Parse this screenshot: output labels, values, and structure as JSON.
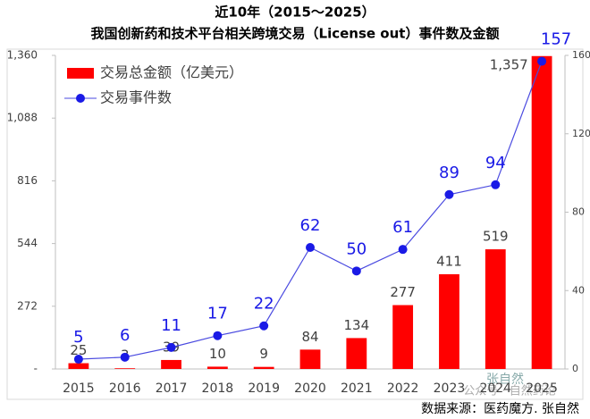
{
  "chart_data": {
    "type": "combo",
    "title": "近10年（2015～2025）",
    "subtitle": "我国创新药和技术平台相关跨境交易（License out）事件数及金额",
    "categories": [
      "2015",
      "2016",
      "2017",
      "2018",
      "2019",
      "2020",
      "2021",
      "2022",
      "2023",
      "2024",
      "2025"
    ],
    "series": [
      {
        "name": "交易总金额（亿美元）",
        "type": "bar",
        "color": "#ff0000",
        "axis": "y",
        "values": [
          25,
          3,
          39,
          10,
          9,
          84,
          134,
          277,
          411,
          519,
          1357
        ],
        "value_labels": [
          "25",
          "3",
          "39",
          "10",
          "9",
          "84",
          "134",
          "277",
          "411",
          "519",
          "1,357"
        ]
      },
      {
        "name": "交易事件数",
        "type": "line",
        "color": "#1a1ae6",
        "axis": "y2",
        "values": [
          5,
          6,
          11,
          17,
          22,
          62,
          50,
          61,
          89,
          94,
          157
        ]
      }
    ],
    "ylim": [
      0,
      1360
    ],
    "yticks": [
      {
        "value": 0,
        "label": "-"
      },
      272,
      544,
      816,
      {
        "value": 1088,
        "label": "1,088"
      },
      {
        "value": 1360,
        "label": "1,360"
      }
    ],
    "y2lim": [
      0,
      160
    ],
    "y2ticks": [
      0,
      40,
      80,
      120,
      160
    ],
    "legend": "top-left",
    "source": "数据来源：医药魔方. 张自然",
    "watermark": [
      "张自然",
      "公众号 · 自然药论"
    ]
  }
}
